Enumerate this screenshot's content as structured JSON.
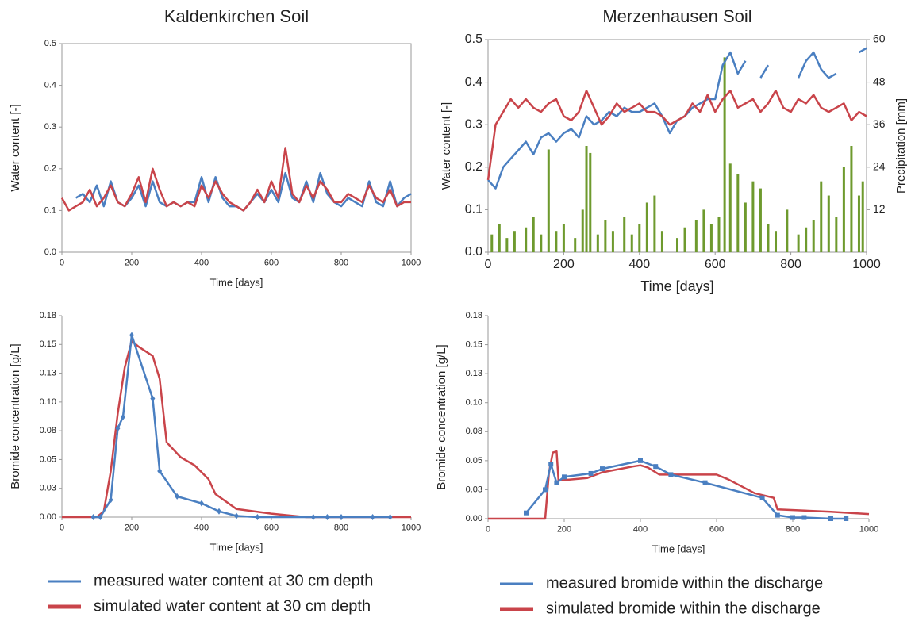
{
  "chart_data": [
    {
      "type": "line",
      "title": "Kaldenkirchen Soil",
      "xlabel": "Time [days]",
      "ylabel": "Water content [-]",
      "xlim": [
        0,
        1000
      ],
      "xticks": [
        0,
        200,
        400,
        600,
        800,
        1000
      ],
      "ylim": [
        0,
        0.5
      ],
      "yticks": [
        {
          "value": 0,
          "label": "0.0"
        },
        0.1,
        0.2,
        0.3,
        0.4,
        0.5
      ],
      "frame": true,
      "x": [
        0,
        20,
        40,
        60,
        80,
        100,
        120,
        140,
        160,
        180,
        200,
        220,
        240,
        260,
        280,
        300,
        320,
        340,
        360,
        380,
        400,
        420,
        440,
        460,
        480,
        500,
        520,
        540,
        560,
        580,
        600,
        620,
        640,
        660,
        680,
        700,
        720,
        740,
        760,
        780,
        800,
        820,
        840,
        860,
        880,
        900,
        920,
        940,
        960,
        980,
        1000
      ],
      "series": [
        {
          "color": "#4a7fc1",
          "values": [
            null,
            null,
            0.13,
            0.14,
            0.12,
            0.16,
            0.11,
            0.17,
            0.12,
            0.11,
            0.13,
            0.16,
            0.11,
            0.17,
            0.12,
            0.11,
            0.12,
            0.11,
            0.12,
            0.12,
            0.18,
            0.12,
            0.18,
            0.13,
            0.11,
            0.11,
            0.1,
            0.12,
            0.14,
            0.12,
            0.15,
            0.12,
            0.19,
            0.13,
            0.12,
            0.17,
            0.12,
            0.19,
            0.14,
            0.12,
            0.11,
            0.13,
            0.12,
            0.11,
            0.17,
            0.12,
            0.11,
            0.17,
            0.11,
            0.13,
            0.14
          ]
        },
        {
          "color": "#c9444a",
          "values": [
            0.13,
            0.1,
            0.11,
            0.12,
            0.15,
            0.11,
            0.13,
            0.16,
            0.12,
            0.11,
            0.14,
            0.18,
            0.12,
            0.2,
            0.15,
            0.11,
            0.12,
            0.11,
            0.12,
            0.11,
            0.16,
            0.13,
            0.17,
            0.14,
            0.12,
            0.11,
            0.1,
            0.12,
            0.15,
            0.12,
            0.17,
            0.13,
            0.25,
            0.14,
            0.12,
            0.16,
            0.13,
            0.17,
            0.15,
            0.12,
            0.12,
            0.14,
            0.13,
            0.12,
            0.16,
            0.13,
            0.12,
            0.15,
            0.11,
            0.12,
            0.12
          ]
        }
      ]
    },
    {
      "type": "line",
      "title": "Merzenhausen Soil",
      "xlabel": "Time [days]",
      "ylabel": "Water content [-]",
      "y2label": "Precipitation [mm]",
      "xlim": [
        0,
        1000
      ],
      "xticks": [
        0,
        200,
        400,
        600,
        800,
        1000
      ],
      "ylim": [
        0,
        0.5
      ],
      "yticks": [
        {
          "value": 0,
          "label": "0.0"
        },
        0.1,
        0.2,
        0.3,
        0.4,
        0.5
      ],
      "y2lim": [
        0,
        60
      ],
      "y2ticks": [
        12,
        24,
        36,
        48,
        60
      ],
      "frame": true,
      "x": [
        0,
        20,
        40,
        60,
        80,
        100,
        120,
        140,
        160,
        180,
        200,
        220,
        240,
        260,
        280,
        300,
        320,
        340,
        360,
        380,
        400,
        420,
        440,
        460,
        480,
        500,
        520,
        540,
        560,
        580,
        600,
        620,
        640,
        660,
        680,
        700,
        720,
        740,
        760,
        780,
        800,
        820,
        840,
        860,
        880,
        900,
        920,
        940,
        960,
        980,
        1000
      ],
      "series": [
        {
          "type": "bar",
          "axis": "y2",
          "color": "#6e9a2e",
          "x": [
            10,
            30,
            50,
            70,
            100,
            120,
            140,
            160,
            180,
            200,
            230,
            250,
            260,
            270,
            290,
            310,
            330,
            360,
            380,
            400,
            420,
            440,
            460,
            500,
            520,
            550,
            570,
            590,
            610,
            625,
            640,
            660,
            680,
            700,
            720,
            740,
            760,
            790,
            820,
            840,
            860,
            880,
            900,
            920,
            940,
            960,
            980,
            990
          ],
          "values": [
            5,
            8,
            4,
            6,
            7,
            10,
            5,
            29,
            6,
            8,
            4,
            12,
            30,
            28,
            5,
            9,
            6,
            10,
            5,
            8,
            14,
            16,
            6,
            4,
            7,
            9,
            12,
            8,
            10,
            55,
            25,
            22,
            14,
            20,
            18,
            8,
            6,
            12,
            5,
            7,
            9,
            20,
            16,
            10,
            24,
            30,
            16,
            20
          ]
        },
        {
          "color": "#4a7fc1",
          "values": [
            0.17,
            0.15,
            0.2,
            0.22,
            0.24,
            0.26,
            0.23,
            0.27,
            0.28,
            0.26,
            0.28,
            0.29,
            0.27,
            0.32,
            0.3,
            0.31,
            0.33,
            0.32,
            0.34,
            0.33,
            0.33,
            0.34,
            0.35,
            0.32,
            0.28,
            0.31,
            0.32,
            0.34,
            0.35,
            0.36,
            0.36,
            0.44,
            0.47,
            0.42,
            0.45,
            null,
            0.41,
            0.44,
            null,
            0.47,
            null,
            0.41,
            0.45,
            0.47,
            0.43,
            0.41,
            0.42,
            null,
            null,
            0.47,
            0.48
          ]
        },
        {
          "color": "#c9444a",
          "values": [
            0.17,
            0.3,
            0.33,
            0.36,
            0.34,
            0.36,
            0.34,
            0.33,
            0.35,
            0.36,
            0.32,
            0.31,
            0.33,
            0.38,
            0.34,
            0.3,
            0.32,
            0.35,
            0.33,
            0.34,
            0.35,
            0.33,
            0.33,
            0.32,
            0.3,
            0.31,
            0.32,
            0.35,
            0.33,
            0.37,
            0.33,
            0.36,
            0.38,
            0.34,
            0.35,
            0.36,
            0.33,
            0.35,
            0.38,
            0.34,
            0.33,
            0.36,
            0.35,
            0.37,
            0.34,
            0.33,
            0.34,
            0.35,
            0.31,
            0.33,
            0.32
          ]
        }
      ]
    },
    {
      "type": "line",
      "xlabel": "Time [days]",
      "ylabel": "Bromide concentration [g/L]",
      "xlim": [
        0,
        1000
      ],
      "xticks": [
        0,
        200,
        400,
        600,
        800,
        1000
      ],
      "ylim": [
        0,
        0.175
      ],
      "yticks": [
        {
          "value": 0,
          "label": "0.00"
        },
        {
          "value": 0.025,
          "label": "0.03"
        },
        {
          "value": 0.05,
          "label": "0.05"
        },
        {
          "value": 0.075,
          "label": "0.08"
        },
        {
          "value": 0.1,
          "label": "0.10"
        },
        {
          "value": 0.125,
          "label": "0.13"
        },
        {
          "value": 0.15,
          "label": "0.15"
        },
        {
          "value": 0.175,
          "label": "0.18"
        }
      ],
      "series": [
        {
          "color": "#c9444a",
          "x": [
            0,
            100,
            120,
            140,
            160,
            180,
            200,
            220,
            260,
            280,
            300,
            340,
            380,
            420,
            440,
            500,
            600,
            700,
            1000
          ],
          "values": [
            0,
            0,
            0.005,
            0.04,
            0.09,
            0.13,
            0.153,
            0.148,
            0.14,
            0.12,
            0.065,
            0.052,
            0.045,
            0.033,
            0.02,
            0.007,
            0.003,
            0,
            0
          ]
        },
        {
          "color": "#4a7fc1",
          "marker": "diamond",
          "x": [
            90,
            110,
            140,
            160,
            175,
            200,
            260,
            280,
            330,
            400,
            450,
            500,
            560,
            720,
            760,
            800,
            890,
            940
          ],
          "values": [
            0,
            0,
            0.015,
            0.077,
            0.087,
            0.158,
            0.103,
            0.04,
            0.018,
            0.012,
            0.005,
            0.001,
            0,
            0,
            0,
            0,
            0,
            0
          ]
        }
      ]
    },
    {
      "type": "line",
      "xlabel": "Time [days]",
      "ylabel": "Bromide concentration [g/L]",
      "xlim": [
        0,
        1000
      ],
      "xticks": [
        0,
        200,
        400,
        600,
        800,
        1000
      ],
      "ylim": [
        0,
        0.175
      ],
      "yticks": [
        {
          "value": 0,
          "label": "0.00"
        },
        {
          "value": 0.025,
          "label": "0.03"
        },
        {
          "value": 0.05,
          "label": "0.05"
        },
        {
          "value": 0.075,
          "label": "0.08"
        },
        {
          "value": 0.1,
          "label": "0.10"
        },
        {
          "value": 0.125,
          "label": "0.13"
        },
        {
          "value": 0.15,
          "label": "0.15"
        },
        {
          "value": 0.175,
          "label": "0.18"
        }
      ],
      "series": [
        {
          "color": "#c9444a",
          "x": [
            0,
            150,
            160,
            170,
            180,
            185,
            190,
            260,
            300,
            380,
            400,
            420,
            450,
            600,
            630,
            700,
            750,
            760,
            900,
            1000
          ],
          "values": [
            0,
            0,
            0.04,
            0.057,
            0.058,
            0.033,
            0.033,
            0.035,
            0.04,
            0.045,
            0.046,
            0.044,
            0.038,
            0.038,
            0.034,
            0.022,
            0.018,
            0.008,
            0.006,
            0.004
          ]
        },
        {
          "color": "#4a7fc1",
          "marker": "square",
          "x": [
            100,
            150,
            165,
            180,
            200,
            270,
            300,
            400,
            440,
            480,
            570,
            720,
            760,
            800,
            830,
            900,
            940
          ],
          "values": [
            0.005,
            0.025,
            0.047,
            0.031,
            0.036,
            0.039,
            0.043,
            0.05,
            0.045,
            0.038,
            0.031,
            0.018,
            0.003,
            0.001,
            0.001,
            0,
            0
          ]
        }
      ]
    }
  ],
  "legends": [
    [
      {
        "name": "measured water content at 30 cm depth",
        "color": "#4a7fc1"
      },
      {
        "name": "simulated water content at 30 cm depth",
        "color": "#c9444a"
      }
    ],
    [
      {
        "name": "measured bromide within the discharge",
        "color": "#4a7fc1"
      },
      {
        "name": "simulated bromide within the discharge",
        "color": "#c9444a"
      }
    ]
  ]
}
